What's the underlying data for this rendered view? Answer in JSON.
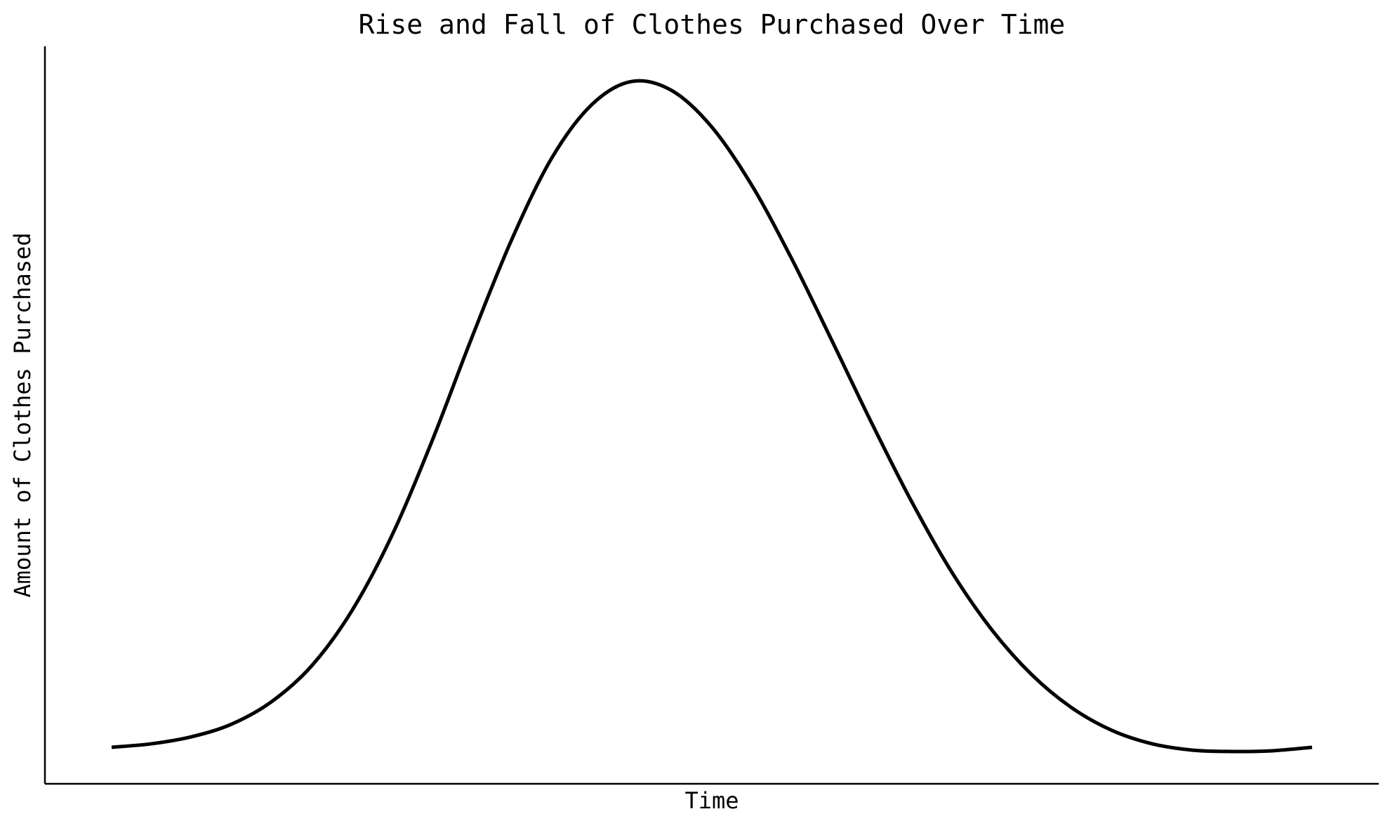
{
  "chart_data": {
    "type": "line",
    "title": "Rise and Fall of Clothes Purchased Over Time",
    "xlabel": "Time",
    "ylabel": "Amount of Clothes Purchased",
    "x_ticks_shown": false,
    "y_ticks_shown": false,
    "grid": false,
    "legend": "none",
    "line_color": "#000000",
    "xlim": [
      0,
      100
    ],
    "ylim": [
      0,
      1.05
    ],
    "series": [
      {
        "x": [
          5,
          8,
          11,
          14,
          17,
          20,
          23,
          26,
          29,
          32,
          35,
          38,
          41,
          44,
          47,
          50,
          53,
          56,
          59,
          62,
          65,
          68,
          71,
          74,
          77,
          80,
          83,
          86,
          89,
          92,
          95
        ],
        "y": [
          0.052,
          0.057,
          0.067,
          0.085,
          0.117,
          0.168,
          0.246,
          0.353,
          0.487,
          0.635,
          0.775,
          0.891,
          0.967,
          1.0,
          0.987,
          0.935,
          0.852,
          0.747,
          0.631,
          0.513,
          0.401,
          0.301,
          0.219,
          0.155,
          0.108,
          0.076,
          0.057,
          0.048,
          0.046,
          0.047,
          0.052
        ]
      }
    ]
  }
}
